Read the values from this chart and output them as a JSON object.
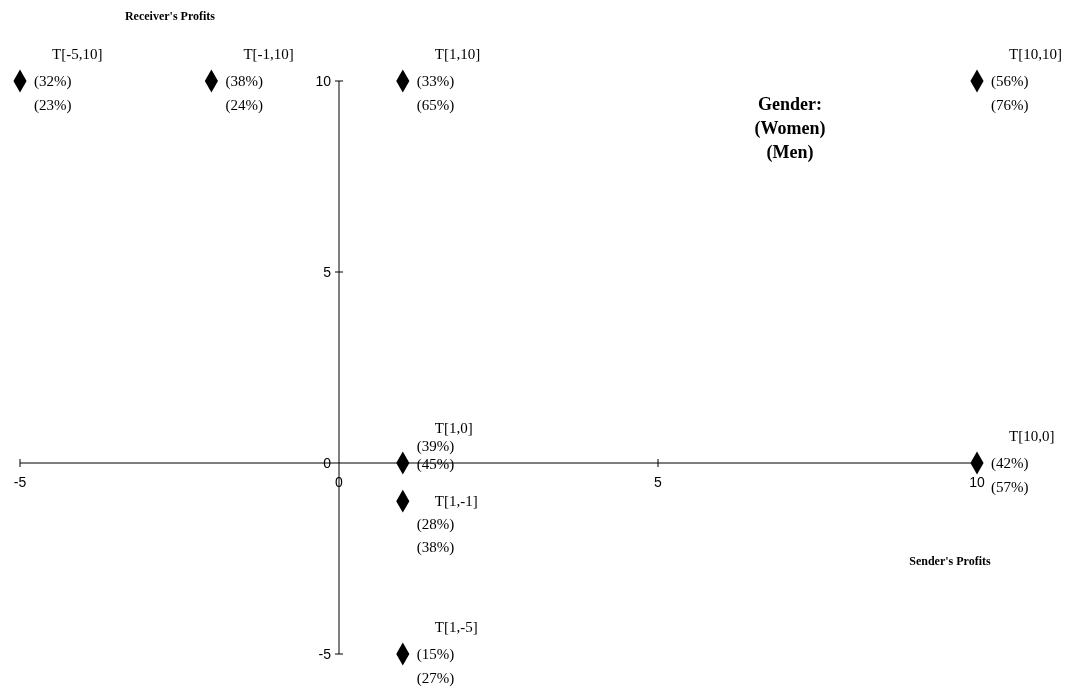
{
  "chart_data": {
    "type": "scatter",
    "xlabel": "Sender's Profits",
    "ylabel": "Receiver's Profits",
    "x": [
      -5,
      -2,
      1,
      10,
      1,
      10,
      1,
      1
    ],
    "series": [
      {
        "color": "#000000",
        "values": [
          10,
          10,
          10,
          10,
          0,
          0,
          -1,
          -5
        ]
      }
    ],
    "xlim": [
      -5,
      10
    ],
    "ylim": [
      -5,
      10
    ],
    "xticks": [
      -5,
      0,
      5,
      10
    ],
    "yticks": [
      -5,
      0,
      5,
      10
    ],
    "grid": false,
    "marker": "diamond",
    "annotations": [
      {
        "text": "T[-5,10]",
        "x": -5,
        "y": 10
      },
      {
        "text": "(32%)",
        "x": -5,
        "y": 10
      },
      {
        "text": "(23%)",
        "x": -5,
        "y": 10
      },
      {
        "text": "T[-1,10]",
        "x": -2,
        "y": 10
      },
      {
        "text": "(38%)",
        "x": -2,
        "y": 10
      },
      {
        "text": "(24%)",
        "x": -2,
        "y": 10
      },
      {
        "text": "T[1,10]",
        "x": 1,
        "y": 10
      },
      {
        "text": "(33%)",
        "x": 1,
        "y": 10
      },
      {
        "text": "(65%)",
        "x": 1,
        "y": 10
      },
      {
        "text": "T[10,10]",
        "x": 10,
        "y": 10
      },
      {
        "text": "(56%)",
        "x": 10,
        "y": 10
      },
      {
        "text": "(76%)",
        "x": 10,
        "y": 10
      },
      {
        "text": "T[1,0]",
        "x": 1,
        "y": 0
      },
      {
        "text": "(39%)",
        "x": 1,
        "y": 0
      },
      {
        "text": "(45%)",
        "x": 1,
        "y": 0
      },
      {
        "text": "T[10,0]",
        "x": 10,
        "y": 0
      },
      {
        "text": "(42%)",
        "x": 10,
        "y": 0
      },
      {
        "text": "(57%)",
        "x": 10,
        "y": 0
      },
      {
        "text": "T[1,-1]",
        "x": 1,
        "y": -1
      },
      {
        "text": "(28%)",
        "x": 1,
        "y": -1
      },
      {
        "text": "(38%)",
        "x": 1,
        "y": -1
      },
      {
        "text": "T[1,-5]",
        "x": 1,
        "y": -5
      },
      {
        "text": "(15%)",
        "x": 1,
        "y": -5
      },
      {
        "text": "(27%)",
        "x": 1,
        "y": -5
      },
      "Gender:",
      "(Women)",
      "(Men)"
    ]
  }
}
